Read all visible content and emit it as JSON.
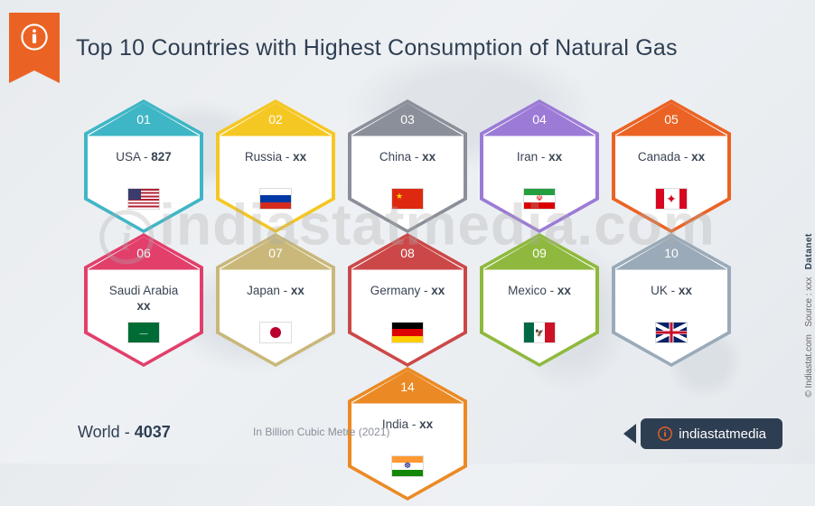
{
  "title": "Top 10 Countries with Highest Consumption of Natural Gas",
  "unit_label": "In Billion Cubic Metre  (2021)",
  "world": {
    "label": "World",
    "value": "4037"
  },
  "brand": "indiastatmedia",
  "side": {
    "logo": "Datanet",
    "source": "Source : xxx",
    "copy": "© Indiastat.com"
  },
  "watermark": "indiastatmedia.com",
  "items": [
    {
      "rank": "01",
      "country": "USA",
      "value": "827",
      "color": "#3fb6c6",
      "flag": "usa"
    },
    {
      "rank": "02",
      "country": "Russia",
      "value": "xx",
      "color": "#f5c723",
      "flag": "russia"
    },
    {
      "rank": "03",
      "country": "China",
      "value": "xx",
      "color": "#8a8f99",
      "flag": "china"
    },
    {
      "rank": "04",
      "country": "Iran",
      "value": "xx",
      "color": "#9c7bd6",
      "flag": "iran"
    },
    {
      "rank": "05",
      "country": "Canada",
      "value": "xx",
      "color": "#eb6324",
      "flag": "canada"
    },
    {
      "rank": "06",
      "country": "Saudi Arabia",
      "value": "xx",
      "color": "#e23f6b",
      "flag": "saudi",
      "multiline": true
    },
    {
      "rank": "07",
      "country": "Japan",
      "value": "xx",
      "color": "#c9b87a",
      "flag": "japan"
    },
    {
      "rank": "08",
      "country": "Germany",
      "value": "xx",
      "color": "#cc4848",
      "flag": "germany"
    },
    {
      "rank": "09",
      "country": "Mexico",
      "value": "xx",
      "color": "#8fb93e",
      "flag": "mexico"
    },
    {
      "rank": "10",
      "country": "UK",
      "value": "xx",
      "color": "#9aaab8",
      "flag": "uk"
    },
    {
      "rank": "14",
      "country": "India",
      "value": "xx",
      "color": "#eb8a24",
      "flag": "india"
    }
  ],
  "flags": {
    "usa": "<div style='background:#b22234;height:100%;position:relative'><div style='position:absolute;top:0;left:0;width:100%;height:100%;background:repeating-linear-gradient(#b22234 0 1.85px,#fff 1.85px 3.7px)'></div><div style='position:absolute;top:0;left:0;width:42%;height:54%;background:#3c3b6e'></div></div>",
    "russia": "<div style='height:33.3%;background:#fff'></div><div style='height:33.3%;background:#0039a6'></div><div style='height:33.4%;background:#d52b1e'></div>",
    "china": "<div style='background:#de2910;height:100%;position:relative'><div style='position:absolute;top:3px;left:4px;color:#ffde00;font-size:9px'>★</div></div>",
    "iran": "<div style='height:33.3%;background:#239f40'></div><div style='height:33.3%;background:#fff;position:relative'><div style='position:absolute;inset:0;display:flex;align-items:center;justify-content:center;color:#da0000;font-size:9px'>☫</div></div><div style='height:33.4%;background:#da0000'></div>",
    "canada": "<div style='display:flex;height:100%'><div style='width:25%;background:#d80621'></div><div style='width:50%;background:#fff;display:flex;align-items:center;justify-content:center;color:#d80621;font-size:14px'>✦</div><div style='width:25%;background:#d80621'></div></div>",
    "saudi": "<div style='background:#006c35;height:100%;display:flex;align-items:center;justify-content:center;color:#fff;font-size:6px'>ـــــ</div>",
    "japan": "<div style='background:#fff;height:100%;display:flex;align-items:center;justify-content:center'><div style='width:12px;height:12px;border-radius:50%;background:#bc002d'></div></div>",
    "germany": "<div style='height:33.3%;background:#000'></div><div style='height:33.3%;background:#dd0000'></div><div style='height:33.4%;background:#ffce00'></div>",
    "mexico": "<div style='display:flex;height:100%'><div style='width:33.3%;background:#006847'></div><div style='width:33.3%;background:#fff;display:flex;align-items:center;justify-content:center;font-size:8px'>🦅</div><div style='width:33.4%;background:#ce1126'></div></div>",
    "uk": "<div style='background:#012169;height:100%;position:relative;overflow:hidden'><div style='position:absolute;inset:0;background:linear-gradient(to bottom,transparent 40%,#fff 40% 60%,transparent 60%),linear-gradient(to right,transparent 42%,#fff 42% 58%,transparent 58%)'></div><div style='position:absolute;inset:0;background:linear-gradient(27deg,transparent 44%,#fff 44% 56%,transparent 56%),linear-gradient(-27deg,transparent 44%,#fff 44% 56%,transparent 56%)'></div><div style='position:absolute;inset:0;background:linear-gradient(to bottom,transparent 44%,#c8102e 44% 56%,transparent 56%),linear-gradient(to right,transparent 46%,#c8102e 46% 54%,transparent 54%)'></div></div>",
    "india": "<div style='height:33.3%;background:#ff9933'></div><div style='height:33.3%;background:#fff;display:flex;align-items:center;justify-content:center;color:#000080;font-size:9px'>☸</div><div style='height:33.4%;background:#138808'></div>"
  }
}
